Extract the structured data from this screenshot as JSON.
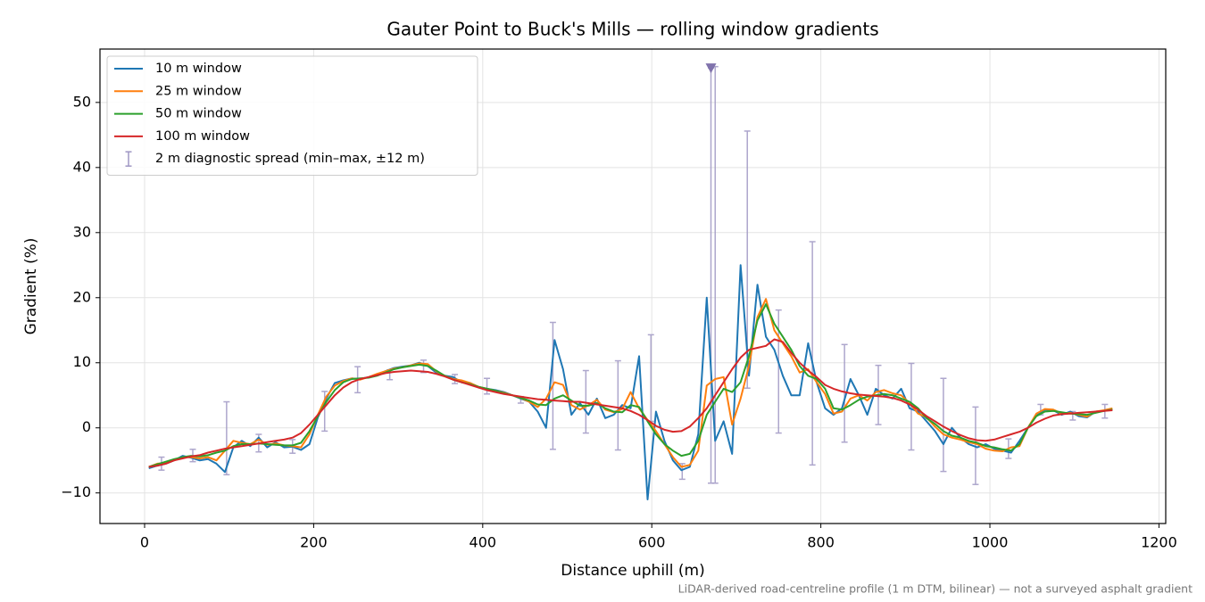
{
  "chart_data": {
    "type": "line",
    "title": "Gauter Point to Buck's Mills — rolling window gradients",
    "xlabel": "Distance uphill (m)",
    "ylabel": "Gradient (%)",
    "note": "LiDAR-derived road-centreline profile (1 m DTM, bilinear) — not a surveyed asphalt gradient",
    "xlim": [
      -52.8,
      1208
    ],
    "ylim": [
      -14.7,
      58.2
    ],
    "xticks": [
      0,
      200,
      400,
      600,
      800,
      1000,
      1200
    ],
    "yticks": [
      {
        "value": -10,
        "label": "−10"
      },
      0,
      10,
      20,
      30,
      40,
      50
    ],
    "grid": true,
    "legend_loc": "upper left",
    "x": [
      5,
      15,
      25,
      35,
      45,
      55,
      65,
      75,
      85,
      95,
      105,
      115,
      125,
      135,
      145,
      155,
      165,
      175,
      185,
      195,
      205,
      215,
      225,
      235,
      245,
      255,
      265,
      275,
      285,
      295,
      305,
      315,
      325,
      335,
      345,
      355,
      365,
      375,
      385,
      395,
      405,
      415,
      425,
      435,
      445,
      455,
      465,
      475,
      485,
      495,
      505,
      515,
      525,
      535,
      545,
      555,
      565,
      575,
      585,
      595,
      605,
      615,
      625,
      635,
      645,
      655,
      665,
      675,
      685,
      695,
      705,
      715,
      725,
      735,
      745,
      755,
      765,
      775,
      785,
      795,
      805,
      815,
      825,
      835,
      845,
      855,
      865,
      875,
      885,
      895,
      905,
      915,
      925,
      935,
      945,
      955,
      965,
      975,
      985,
      995,
      1005,
      1015,
      1025,
      1035,
      1045,
      1055,
      1065,
      1075,
      1085,
      1095,
      1105,
      1115,
      1125,
      1135,
      1145
    ],
    "series": [
      {
        "name": "10 m window",
        "color": "#1f77b4",
        "values": [
          -6.2,
          -5.8,
          -5.5,
          -5,
          -4.3,
          -4.6,
          -5,
          -4.8,
          -5.5,
          -6.8,
          -3,
          -2,
          -2.8,
          -1.5,
          -3,
          -2.2,
          -3,
          -2.9,
          -3.4,
          -2.5,
          1.6,
          4.5,
          6.9,
          7.3,
          7.6,
          7.5,
          7.8,
          8.2,
          8.7,
          9.2,
          9.4,
          9.6,
          10,
          9.5,
          8.5,
          8,
          7.8,
          7,
          6.9,
          6.2,
          6,
          5.8,
          5.5,
          5,
          4.5,
          4,
          2.5,
          0,
          13.5,
          9,
          2,
          3.8,
          2,
          4.5,
          1.5,
          2,
          3.5,
          3,
          11,
          -11,
          2.5,
          -2,
          -5,
          -6.5,
          -6,
          -1,
          20,
          -2,
          1,
          -4,
          25,
          8,
          22,
          14,
          12,
          8,
          5,
          5,
          13,
          7,
          3,
          2,
          3,
          7.5,
          5,
          2,
          6,
          5,
          4.5,
          6,
          3,
          2.5,
          1,
          -0.5,
          -2.5,
          0,
          -1.5,
          -2.5,
          -3,
          -2.5,
          -3.2,
          -3.5,
          -3.8,
          -2,
          0,
          2,
          2.8,
          2.7,
          2,
          2.5,
          1.8,
          1.6,
          2.5,
          2.6,
          2.9
        ]
      },
      {
        "name": "25 m window",
        "color": "#ff7f0e",
        "values": [
          -6,
          -5.5,
          -5.4,
          -5,
          -4.5,
          -4.5,
          -4.7,
          -4.5,
          -5,
          -3.5,
          -2,
          -2.3,
          -2.5,
          -1.8,
          -2.6,
          -2.4,
          -2.7,
          -2.8,
          -3,
          -1,
          2,
          4.8,
          6.5,
          7.2,
          7.6,
          7.4,
          7.8,
          8.3,
          8.7,
          9.1,
          9.3,
          9.6,
          9.9,
          9.8,
          8.7,
          8,
          7.5,
          7.3,
          6.9,
          6.3,
          6,
          5.7,
          5.4,
          5,
          4.6,
          4,
          3.2,
          4.5,
          7,
          6.6,
          3.5,
          2.8,
          3.5,
          4.3,
          2.8,
          2.4,
          2.9,
          5.5,
          3,
          1.2,
          -0.5,
          -2.5,
          -4.5,
          -6,
          -5.7,
          -3.5,
          6.5,
          7.5,
          7.8,
          0.5,
          4.5,
          9.5,
          17,
          19.8,
          15,
          13,
          11,
          8.5,
          9,
          7,
          5.2,
          2.2,
          2.5,
          4.5,
          5,
          4.2,
          5.5,
          5.8,
          5.3,
          5,
          3.8,
          2.2,
          1.6,
          0.2,
          -1,
          -1.5,
          -1.8,
          -2.2,
          -2.5,
          -3.2,
          -3.5,
          -3.6,
          -3,
          -2.8,
          0,
          2.2,
          2.9,
          2.8,
          2.2,
          2.3,
          2,
          1.7,
          2.5,
          2.7,
          3
        ]
      },
      {
        "name": "50 m window",
        "color": "#2ca02c",
        "values": [
          -6,
          -5.6,
          -5.2,
          -4.8,
          -4.5,
          -4.3,
          -4.4,
          -4.2,
          -3.8,
          -3.5,
          -2.8,
          -2.5,
          -2.5,
          -2.4,
          -2.5,
          -2.6,
          -2.7,
          -2.7,
          -2.3,
          -0.5,
          1.8,
          4,
          5.8,
          7,
          7.5,
          7.6,
          7.7,
          8,
          8.5,
          9,
          9.3,
          9.5,
          9.7,
          9.5,
          8.8,
          8,
          7.4,
          7,
          6.7,
          6.3,
          6,
          5.7,
          5.3,
          5,
          4.6,
          4.2,
          3.6,
          3.5,
          4.5,
          5,
          4.2,
          3.4,
          3.4,
          3.8,
          3,
          2.5,
          2.4,
          3.5,
          3.2,
          1,
          -1,
          -2.5,
          -3.5,
          -4.3,
          -4,
          -2,
          2,
          4,
          6,
          5.5,
          7,
          11,
          16.5,
          19,
          16,
          14,
          12,
          9.5,
          8,
          7.5,
          6,
          3,
          2.8,
          3.5,
          4.3,
          4.8,
          5,
          5.2,
          5,
          4.5,
          4,
          3,
          1.5,
          0.6,
          -0.5,
          -1.2,
          -1.5,
          -2,
          -2.3,
          -2.8,
          -3,
          -3.3,
          -3.5,
          -2.5,
          0,
          1.8,
          2.5,
          2.6,
          2.4,
          2.2,
          2.1,
          2,
          2.3,
          2.6,
          2.8
        ]
      },
      {
        "name": "100 m window",
        "color": "#d62728",
        "values": [
          -6,
          -5.8,
          -5.5,
          -5,
          -4.7,
          -4.4,
          -4.2,
          -3.8,
          -3.5,
          -3.2,
          -3,
          -2.8,
          -2.6,
          -2.4,
          -2.2,
          -2,
          -1.8,
          -1.5,
          -0.8,
          0.5,
          2,
          3.5,
          5,
          6.2,
          7,
          7.5,
          7.8,
          8.1,
          8.4,
          8.6,
          8.7,
          8.8,
          8.7,
          8.6,
          8.3,
          7.9,
          7.4,
          7,
          6.6,
          6.2,
          5.8,
          5.5,
          5.2,
          5,
          4.8,
          4.6,
          4.4,
          4.3,
          4.2,
          4.1,
          4,
          4,
          3.8,
          3.6,
          3.4,
          3.2,
          3,
          2.6,
          2,
          1.2,
          0.3,
          -0.3,
          -0.6,
          -0.5,
          0.2,
          1.5,
          3,
          5,
          7,
          9,
          10.8,
          12,
          12.3,
          12.6,
          13.6,
          13.2,
          11.5,
          10,
          8.8,
          7.8,
          6.6,
          6,
          5.6,
          5.3,
          5.1,
          5,
          4.9,
          4.8,
          4.6,
          4.2,
          3.6,
          2.8,
          1.8,
          1,
          0.2,
          -0.5,
          -1.1,
          -1.6,
          -1.9,
          -2,
          -1.8,
          -1.4,
          -1,
          -0.6,
          0,
          0.8,
          1.4,
          1.9,
          2.1,
          2.2,
          2.3,
          2.4,
          2.5,
          2.6,
          2.7
        ]
      }
    ],
    "errorbars": {
      "name": "2 m diagnostic spread (min–max, ±12 m)",
      "color": "#9f97c4",
      "x": [
        20,
        57,
        97,
        135,
        175,
        213,
        252,
        290,
        330,
        367,
        405,
        445,
        483,
        522,
        560,
        599,
        636,
        670,
        675,
        713,
        750,
        790,
        828,
        868,
        907,
        945,
        983,
        1022,
        1060,
        1098,
        1136
      ],
      "low": [
        -6.5,
        -5.2,
        -7.2,
        -3.7,
        -3.9,
        -0.5,
        5.4,
        7.4,
        8.5,
        6.8,
        5.2,
        3.8,
        -3.3,
        -0.8,
        -3.4,
        1,
        -7.9,
        -8.5,
        -8.5,
        6.1,
        -0.8,
        -5.7,
        -2.2,
        0.5,
        -3.4,
        -6.7,
        -8.7,
        -4.7,
        2,
        1.2,
        1.5
      ],
      "high": [
        -4.5,
        -3.3,
        4,
        -1,
        -1.8,
        5.6,
        9.4,
        8.9,
        10.4,
        8.2,
        7.6,
        4.8,
        16.2,
        8.8,
        10.3,
        14.3,
        -5.5,
        55.3,
        55.5,
        45.6,
        18.1,
        28.6,
        12.8,
        9.6,
        9.9,
        7.6,
        3.2,
        -1.7,
        3.6,
        2.5,
        3.6
      ]
    },
    "clip_marker": {
      "x": 670,
      "y": 55.3,
      "color": "#8073ac"
    }
  }
}
